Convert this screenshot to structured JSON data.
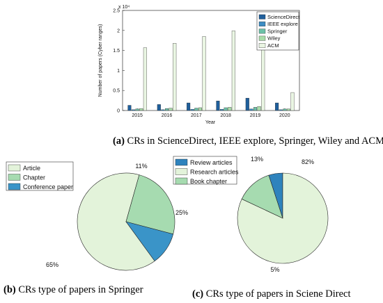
{
  "colors": {
    "sciencedirect": "#1f5f9c",
    "ieee": "#3d8dc4",
    "springer": "#6cc1a8",
    "wiley": "#a9dca9",
    "acm": "#eaf6e3",
    "pie_article": "#e3f3da",
    "pie_chapter": "#a6dbb0",
    "pie_conference": "#3a94c8",
    "pie_review": "#2e83bd",
    "pie_research": "#e3f3da",
    "pie_book": "#a6dbb0"
  },
  "chart_data": [
    {
      "type": "bar",
      "ylabel": "Number of papers (Cyber ranges)",
      "xlabel": "Year",
      "exponent_label": "x 10⁴",
      "ylim": [
        0,
        2.5
      ],
      "yticks": [
        "0",
        "0.5",
        "1",
        "1.5",
        "2",
        "2.5"
      ],
      "categories": [
        "2015",
        "2016",
        "2017",
        "2018",
        "2019",
        "2020"
      ],
      "legend_position": "top-right",
      "series": [
        {
          "name": "ScienceDirect",
          "color": "#1f5f9c",
          "values": [
            0.13,
            0.15,
            0.19,
            0.24,
            0.31,
            0.19
          ]
        },
        {
          "name": "IEEE explore",
          "color": "#3d8dc4",
          "values": [
            0.02,
            0.02,
            0.03,
            0.03,
            0.04,
            0.02
          ]
        },
        {
          "name": "Springer",
          "color": "#6cc1a8",
          "values": [
            0.04,
            0.05,
            0.06,
            0.07,
            0.08,
            0.04
          ]
        },
        {
          "name": "Wiley",
          "color": "#a9dca9",
          "values": [
            0.05,
            0.06,
            0.07,
            0.08,
            0.1,
            0.04
          ]
        },
        {
          "name": "ACM",
          "color": "#eaf6e3",
          "values": [
            1.57,
            1.68,
            1.85,
            1.99,
            2.09,
            0.45
          ]
        }
      ],
      "caption_letter": "(a)",
      "caption_text": " CRs in ScienceDirect, IEEE explore, Springer, Wiley and ACM."
    },
    {
      "type": "pie",
      "labels": [
        "Article",
        "Chapter",
        "Conference paper"
      ],
      "values": [
        65,
        25,
        11
      ],
      "value_labels": [
        "65%",
        "25%",
        "11%"
      ],
      "colors": [
        "#e3f3da",
        "#a6dbb0",
        "#3a94c8"
      ],
      "legend_position": "top-left",
      "caption_letter": "(b)",
      "caption_text": " CRs type of papers in Springer"
    },
    {
      "type": "pie",
      "labels": [
        "Review articles",
        "Research articles",
        "Book chapter"
      ],
      "values": [
        5,
        82,
        13
      ],
      "value_labels": [
        "5%",
        "82%",
        "13%"
      ],
      "colors": [
        "#2e83bd",
        "#e3f3da",
        "#a6dbb0"
      ],
      "legend_position": "top-left",
      "caption_letter": "(c)",
      "caption_text": " CRs type of papers in Sciene Direct"
    }
  ]
}
